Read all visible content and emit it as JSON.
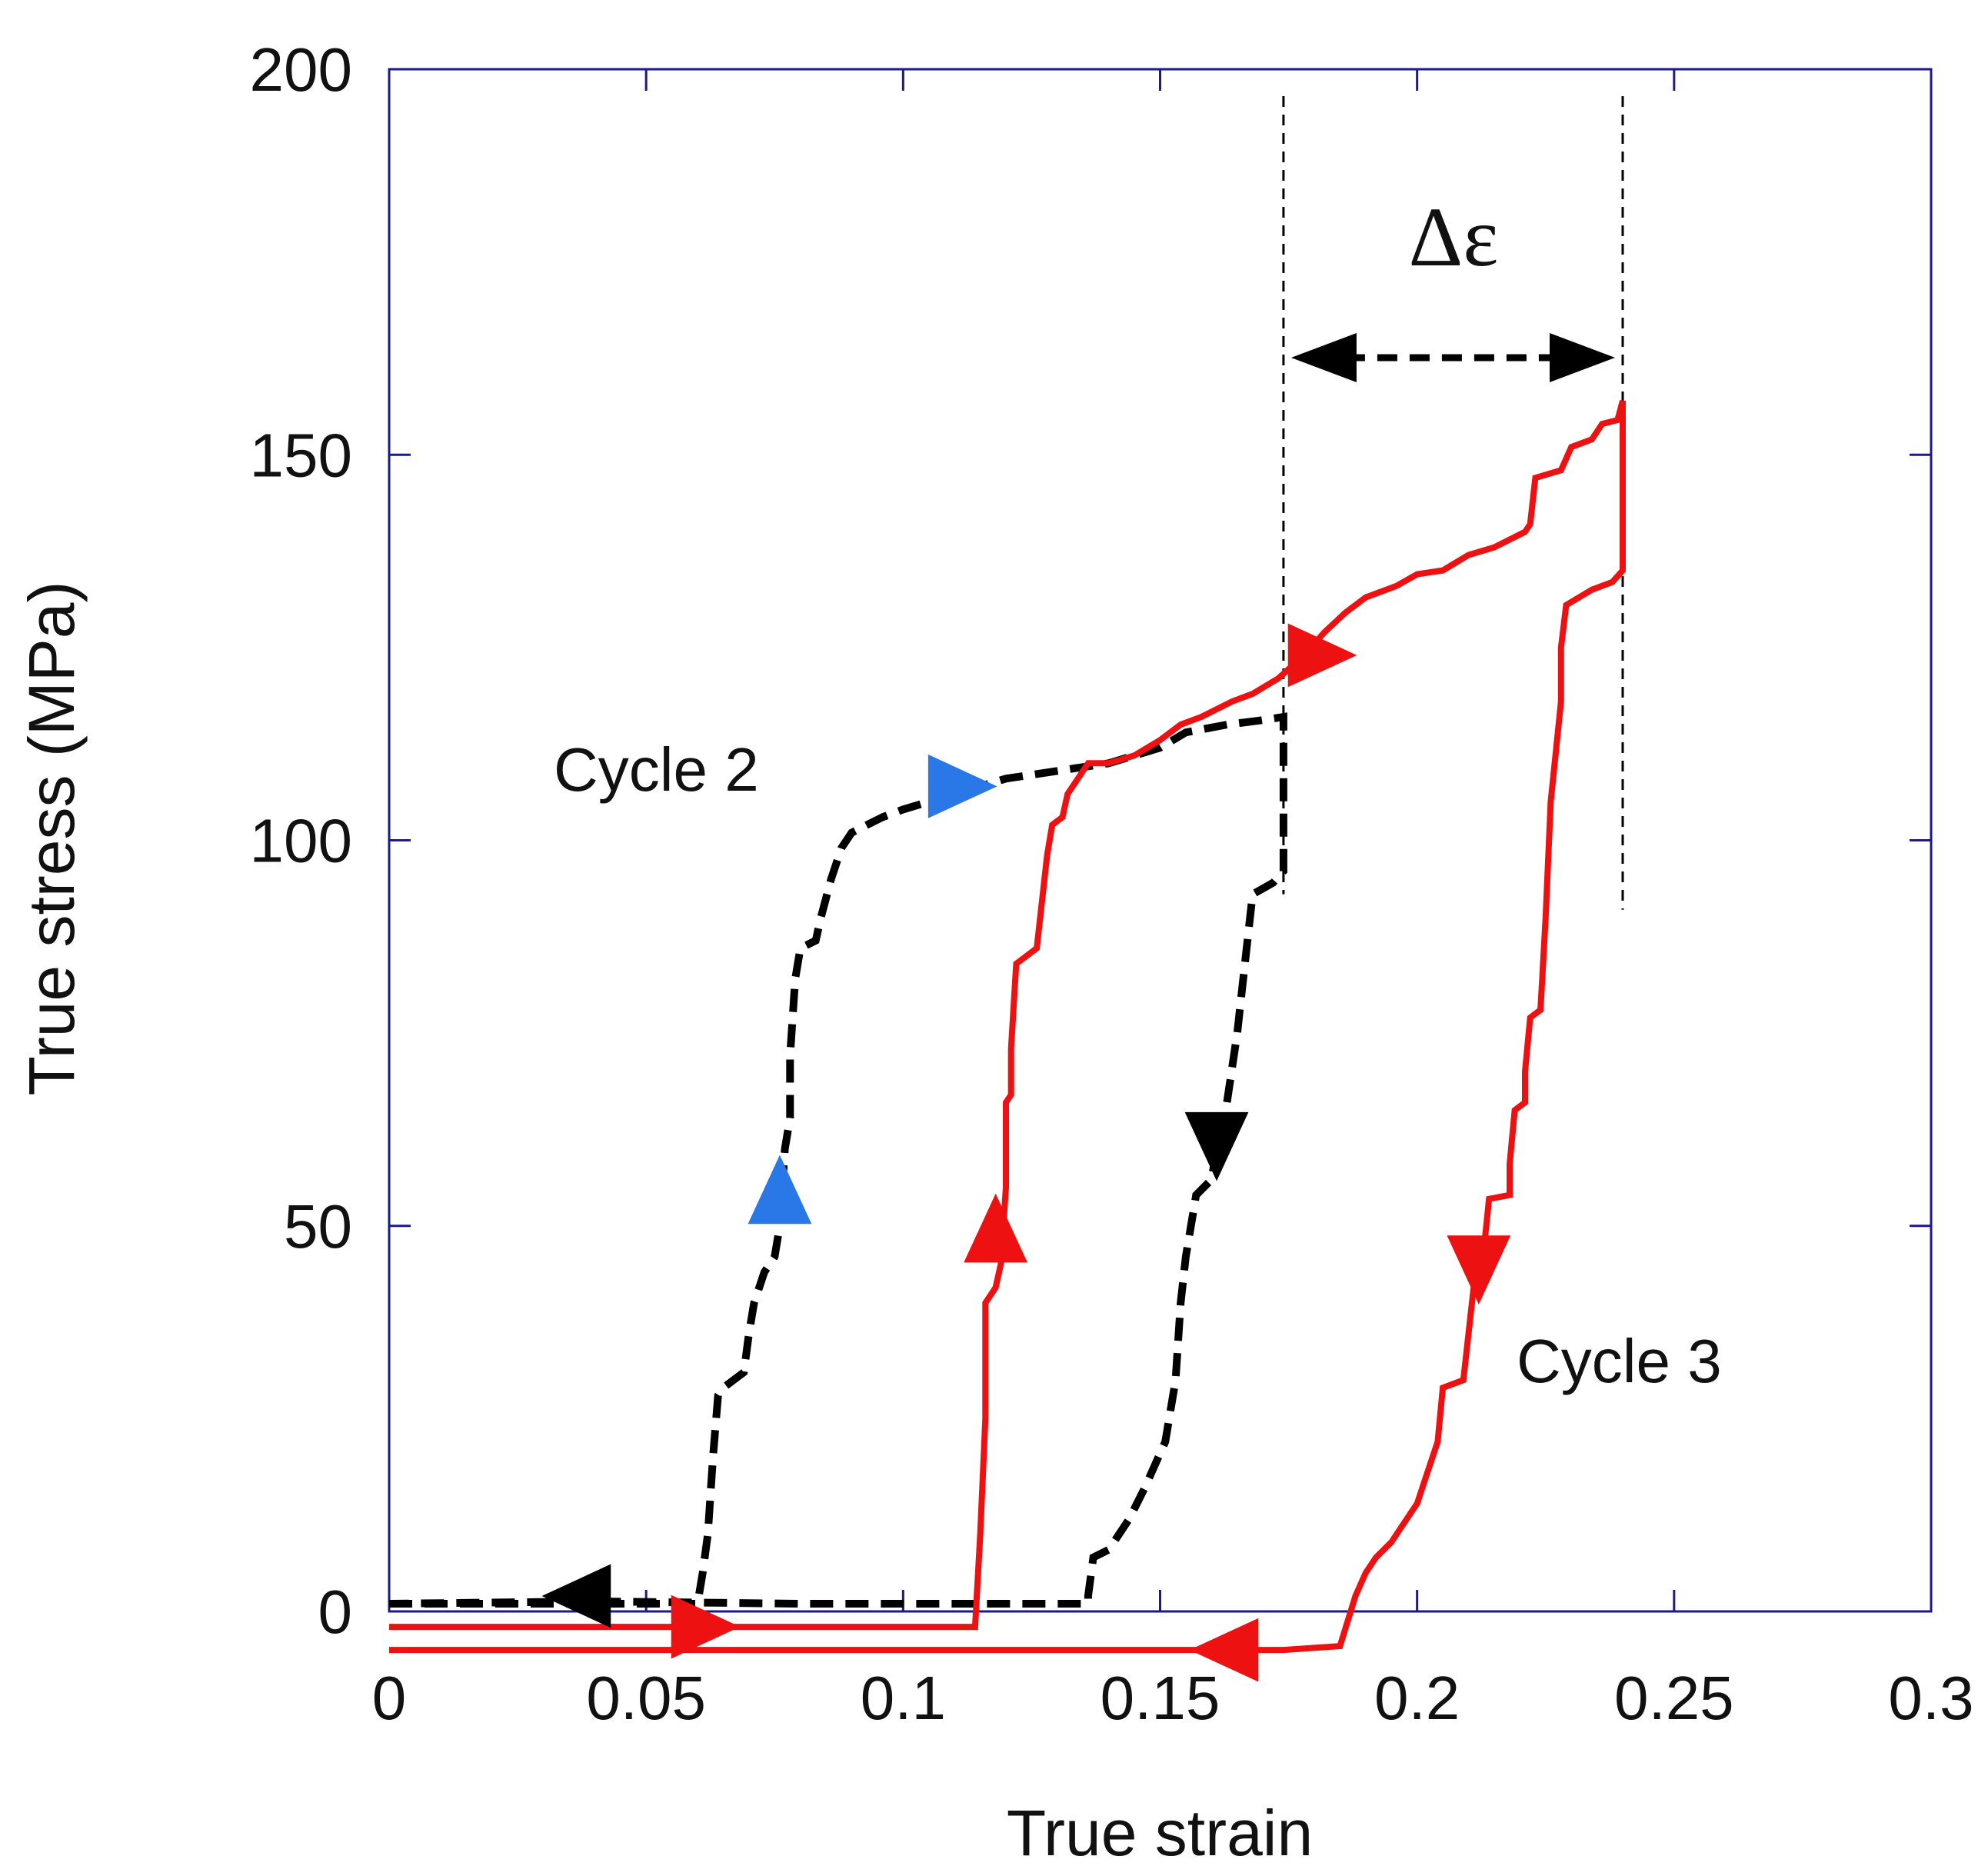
{
  "chart_data": {
    "type": "line",
    "title": "",
    "xlabel": "True strain",
    "ylabel": "True stress (MPa)",
    "xlim": [
      0,
      0.3
    ],
    "ylim": [
      0,
      200
    ],
    "xticks": [
      0,
      0.05,
      0.1,
      0.15,
      0.2,
      0.25,
      0.3
    ],
    "xtick_labels": [
      "0",
      "0.05",
      "0.1",
      "0.15",
      "0.2",
      "0.25",
      "0.3"
    ],
    "yticks": [
      0,
      50,
      100,
      150,
      200
    ],
    "ytick_labels": [
      "0",
      "50",
      "100",
      "150",
      "200"
    ],
    "grid": false,
    "colors": {
      "axes": "#1a1a8c",
      "cycle2": "#000000",
      "cycle3": "#ee1111",
      "cycle2_arrow": "#2a77e8"
    },
    "annotations": {
      "cycle2": "Cycle 2",
      "cycle3": "Cycle 3",
      "delta": "Δε",
      "delta_range": [
        0.174,
        0.24
      ]
    },
    "series": [
      {
        "name": "Cycle 2",
        "style": "dashed",
        "color": "#000000",
        "points": [
          [
            0.0,
            1
          ],
          [
            0.06,
            1
          ],
          [
            0.061,
            5
          ],
          [
            0.062,
            10
          ],
          [
            0.063,
            20
          ],
          [
            0.064,
            28
          ],
          [
            0.065,
            29
          ],
          [
            0.067,
            30
          ],
          [
            0.069,
            31
          ],
          [
            0.07,
            36
          ],
          [
            0.071,
            40
          ],
          [
            0.073,
            44
          ],
          [
            0.075,
            46
          ],
          [
            0.076,
            50
          ],
          [
            0.077,
            60
          ],
          [
            0.078,
            64
          ],
          [
            0.078,
            72
          ],
          [
            0.079,
            82
          ],
          [
            0.08,
            86
          ],
          [
            0.083,
            87
          ],
          [
            0.084,
            90
          ],
          [
            0.086,
            95
          ],
          [
            0.088,
            99
          ],
          [
            0.09,
            101
          ],
          [
            0.093,
            102
          ],
          [
            0.096,
            103
          ],
          [
            0.1,
            104
          ],
          [
            0.11,
            106
          ],
          [
            0.12,
            108
          ],
          [
            0.13,
            109
          ],
          [
            0.14,
            110
          ],
          [
            0.15,
            112
          ],
          [
            0.155,
            114
          ],
          [
            0.163,
            115
          ],
          [
            0.169,
            115.5
          ],
          [
            0.174,
            116
          ],
          [
            0.174,
            108
          ],
          [
            0.174,
            96
          ],
          [
            0.172,
            94.5
          ],
          [
            0.168,
            93
          ],
          [
            0.167,
            87
          ],
          [
            0.166,
            81
          ],
          [
            0.165,
            75
          ],
          [
            0.163,
            66
          ],
          [
            0.161,
            60
          ],
          [
            0.16,
            56
          ],
          [
            0.157,
            54
          ],
          [
            0.156,
            50
          ],
          [
            0.155,
            46
          ],
          [
            0.154,
            40
          ],
          [
            0.153,
            30
          ],
          [
            0.151,
            22
          ],
          [
            0.149,
            19
          ],
          [
            0.147,
            16
          ],
          [
            0.144,
            12
          ],
          [
            0.14,
            8
          ],
          [
            0.137,
            7
          ],
          [
            0.136,
            2
          ],
          [
            0.136,
            1
          ],
          [
            0.08,
            1
          ],
          [
            0.04,
            1.3
          ],
          [
            0.0,
            1
          ]
        ]
      },
      {
        "name": "Cycle 3",
        "style": "solid",
        "color": "#ee1111",
        "points": [
          [
            0.0,
            -2
          ],
          [
            0.06,
            -2
          ],
          [
            0.114,
            -2
          ],
          [
            0.115,
            10
          ],
          [
            0.116,
            25
          ],
          [
            0.116,
            40
          ],
          [
            0.118,
            42
          ],
          [
            0.119,
            45
          ],
          [
            0.12,
            55
          ],
          [
            0.12,
            66
          ],
          [
            0.121,
            67
          ],
          [
            0.121,
            73
          ],
          [
            0.122,
            84
          ],
          [
            0.124,
            85
          ],
          [
            0.126,
            86
          ],
          [
            0.127,
            92
          ],
          [
            0.128,
            98
          ],
          [
            0.129,
            102
          ],
          [
            0.131,
            103
          ],
          [
            0.132,
            106
          ],
          [
            0.134,
            108
          ],
          [
            0.136,
            110
          ],
          [
            0.14,
            110
          ],
          [
            0.145,
            111
          ],
          [
            0.15,
            113
          ],
          [
            0.154,
            115
          ],
          [
            0.158,
            116
          ],
          [
            0.164,
            118
          ],
          [
            0.168,
            119
          ],
          [
            0.173,
            121
          ],
          [
            0.178,
            124
          ],
          [
            0.182,
            127
          ],
          [
            0.186,
            129.5
          ],
          [
            0.19,
            131.5
          ],
          [
            0.196,
            133
          ],
          [
            0.2,
            134.5
          ],
          [
            0.205,
            135
          ],
          [
            0.21,
            137
          ],
          [
            0.215,
            138
          ],
          [
            0.221,
            140
          ],
          [
            0.222,
            141
          ],
          [
            0.223,
            147
          ],
          [
            0.228,
            148
          ],
          [
            0.23,
            151
          ],
          [
            0.234,
            152
          ],
          [
            0.236,
            154
          ],
          [
            0.239,
            154.5
          ],
          [
            0.24,
            157
          ],
          [
            0.24,
            144
          ],
          [
            0.24,
            135
          ],
          [
            0.238,
            133.5
          ],
          [
            0.234,
            132.5
          ],
          [
            0.229,
            130.5
          ],
          [
            0.228,
            125
          ],
          [
            0.228,
            118
          ],
          [
            0.226,
            105
          ],
          [
            0.225,
            90
          ],
          [
            0.224,
            78
          ],
          [
            0.222,
            77
          ],
          [
            0.221,
            70
          ],
          [
            0.221,
            66
          ],
          [
            0.219,
            65
          ],
          [
            0.218,
            58
          ],
          [
            0.218,
            54
          ],
          [
            0.214,
            53.5
          ],
          [
            0.213,
            47
          ],
          [
            0.211,
            42
          ],
          [
            0.21,
            36
          ],
          [
            0.209,
            30
          ],
          [
            0.205,
            29
          ],
          [
            0.204,
            22
          ],
          [
            0.202,
            18
          ],
          [
            0.2,
            14
          ],
          [
            0.198,
            12
          ],
          [
            0.195,
            9
          ],
          [
            0.192,
            7
          ],
          [
            0.19,
            5
          ],
          [
            0.188,
            2
          ],
          [
            0.185,
            -4.5
          ],
          [
            0.174,
            -5
          ],
          [
            0.14,
            -5
          ],
          [
            0.0,
            -5
          ]
        ]
      }
    ],
    "arrows": [
      {
        "color": "#2a77e8",
        "series": "Cycle 2",
        "x": 0.076,
        "y": 53,
        "direction": "up"
      },
      {
        "color": "#2a77e8",
        "series": "Cycle 2",
        "x": 0.109,
        "y": 107,
        "direction": "right"
      },
      {
        "color": "#000000",
        "series": "Cycle 2",
        "x": 0.161,
        "y": 62,
        "direction": "down"
      },
      {
        "color": "#000000",
        "series": "Cycle 2",
        "x": 0.039,
        "y": 2,
        "direction": "left"
      },
      {
        "color": "#ee1111",
        "series": "Cycle 3",
        "x": 0.118,
        "y": 48,
        "direction": "up"
      },
      {
        "color": "#ee1111",
        "series": "Cycle 3",
        "x": 0.179,
        "y": 124,
        "direction": "right"
      },
      {
        "color": "#ee1111",
        "series": "Cycle 3",
        "x": 0.212,
        "y": 46,
        "direction": "down"
      },
      {
        "color": "#ee1111",
        "series": "Cycle 3",
        "x": 0.165,
        "y": -5,
        "direction": "left"
      },
      {
        "color": "#ee1111",
        "series": "Cycle 3",
        "x": 0.059,
        "y": -2,
        "direction": "right"
      }
    ]
  }
}
